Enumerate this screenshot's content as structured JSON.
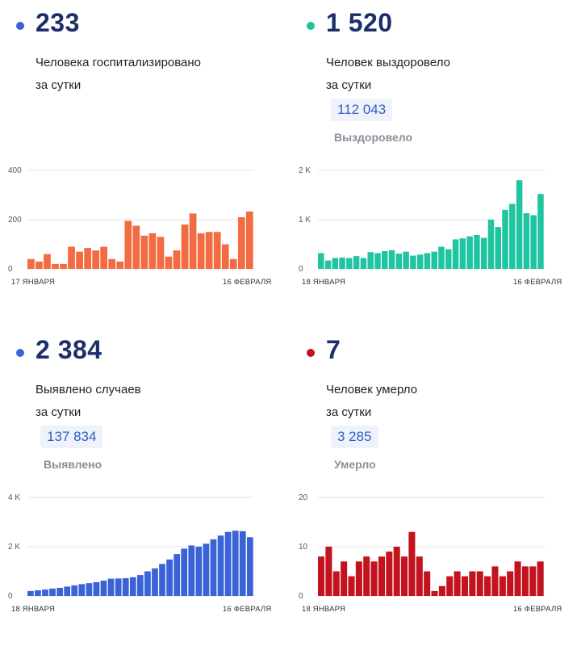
{
  "panels": [
    {
      "value": "233",
      "desc_line1": "Человека госпитализировано",
      "desc_line2": "за сутки",
      "total": "",
      "total_label": "",
      "dot_color": "#3a63d8"
    },
    {
      "value": "1 520",
      "desc_line1": "Человек выздоровело",
      "desc_line2": "за сутки",
      "total": "112 043",
      "total_label": "Выздоровело",
      "dot_color": "#1fc4a0"
    },
    {
      "value": "2 384",
      "desc_line1": "Выявлено случаев",
      "desc_line2": "за сутки",
      "total": "137 834",
      "total_label": "Выявлено",
      "dot_color": "#3a63d8"
    },
    {
      "value": "7",
      "desc_line1": "Человек умерло",
      "desc_line2": "за сутки",
      "total": "3 285",
      "total_label": "Умерло",
      "dot_color": "#c3131f"
    }
  ],
  "chart_data": [
    {
      "type": "bar",
      "color": "#f26b43",
      "x_start_label": "17 ЯНВАРЯ",
      "x_end_label": "16 ФЕВРАЛЯ",
      "y_ticks": [
        "0",
        "200",
        "400"
      ],
      "ylim": [
        0,
        400
      ],
      "values": [
        40,
        30,
        60,
        20,
        20,
        90,
        70,
        85,
        75,
        90,
        40,
        30,
        195,
        175,
        135,
        145,
        130,
        50,
        75,
        180,
        225,
        145,
        150,
        150,
        100,
        40,
        210,
        233
      ]
    },
    {
      "type": "bar",
      "color": "#1fc4a0",
      "x_start_label": "18 ЯНВАРЯ",
      "x_end_label": "16 ФЕВРАЛЯ",
      "y_ticks": [
        "0",
        "1 K",
        "2 K"
      ],
      "ylim": [
        0,
        2000
      ],
      "values": [
        320,
        170,
        220,
        230,
        220,
        260,
        220,
        340,
        320,
        360,
        380,
        310,
        350,
        270,
        290,
        320,
        350,
        450,
        400,
        600,
        620,
        660,
        690,
        630,
        1000,
        850,
        1200,
        1320,
        1800,
        1130,
        1090,
        1520
      ]
    },
    {
      "type": "bar",
      "color": "#3a63d8",
      "x_start_label": "18 ЯНВАРЯ",
      "x_end_label": "16 ФЕВРАЛЯ",
      "y_ticks": [
        "0",
        "2 K",
        "4 K"
      ],
      "ylim": [
        0,
        4000
      ],
      "values": [
        200,
        230,
        260,
        300,
        330,
        380,
        430,
        480,
        520,
        560,
        620,
        700,
        710,
        720,
        760,
        850,
        1000,
        1120,
        1300,
        1480,
        1700,
        1920,
        2050,
        2000,
        2120,
        2300,
        2450,
        2600,
        2650,
        2630,
        2384
      ]
    },
    {
      "type": "bar",
      "color": "#c3131f",
      "x_start_label": "18 ЯНВАРЯ",
      "x_end_label": "16 ФЕВРАЛЯ",
      "y_ticks": [
        "0",
        "10",
        "20"
      ],
      "ylim": [
        0,
        20
      ],
      "values": [
        8,
        10,
        5,
        7,
        4,
        7,
        8,
        7,
        8,
        9,
        10,
        8,
        13,
        8,
        5,
        1,
        2,
        4,
        5,
        4,
        5,
        5,
        4,
        6,
        4,
        5,
        7,
        6,
        6,
        7
      ]
    }
  ]
}
